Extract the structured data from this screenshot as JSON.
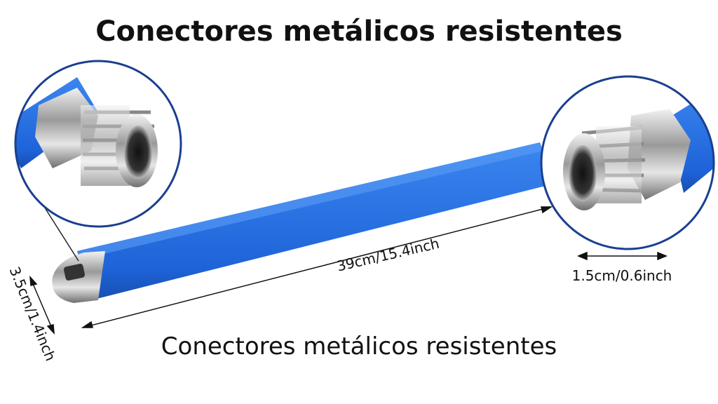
{
  "header": {
    "title": "Conectores metálicos resistentes"
  },
  "dimensions": {
    "length": "39cm/15.4inch",
    "connector": "1.5cm/0.6inch",
    "width": "3.5cm/1.4inch"
  },
  "caption": "Conectores metálicos resistentes"
}
